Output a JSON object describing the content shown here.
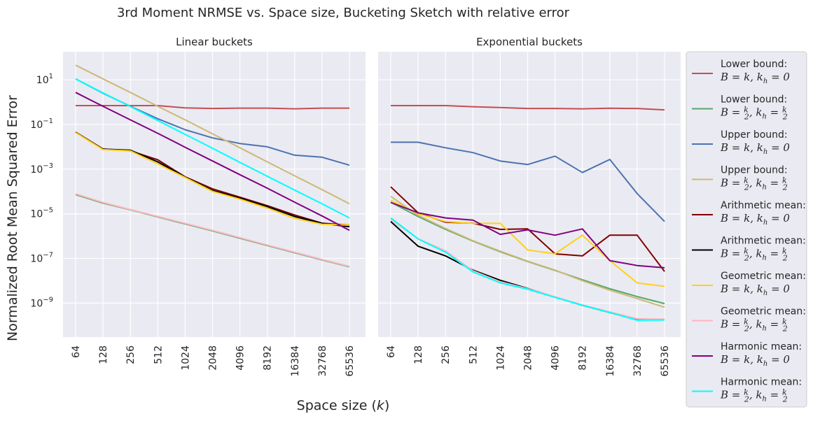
{
  "title": "3rd Moment NRMSE vs. Space size, Bucketing Sketch with relative error",
  "ylabel": "Normalized Root Mean Squared Error",
  "xlabel": "Space size (k)",
  "chart_data": [
    {
      "type": "line",
      "title": "Linear buckets",
      "y_scale": "log",
      "ylim": [
        3e-11,
        180
      ],
      "y_ticks": [
        1,
        -1,
        -3,
        -5,
        -7,
        -9
      ],
      "categories": [
        "64",
        "128",
        "256",
        "512",
        "1024",
        "2048",
        "4096",
        "8192",
        "16384",
        "32768",
        "65536"
      ],
      "grid": true,
      "series": [
        {
          "name": "Lower bound: B = k, k_h = 0",
          "color": "#c44e52",
          "values": [
            0.7,
            0.7,
            0.7,
            0.7,
            0.55,
            0.52,
            0.54,
            0.54,
            0.5,
            0.54,
            0.54
          ]
        },
        {
          "name": "Lower bound: B = k/2, k_h = k/2",
          "color": "#55a868",
          "values": [
            7.2e-05,
            3e-05,
            1.5e-05,
            7.2e-06,
            3.5e-06,
            1.7e-06,
            8e-07,
            3.8e-07,
            1.8e-07,
            8.6e-08,
            4.2e-08
          ]
        },
        {
          "name": "Upper bound: B = k, k_h = 0",
          "color": "#4c72b0",
          "values": [
            11,
            2.5,
            0.65,
            0.18,
            0.058,
            0.025,
            0.014,
            0.01,
            0.0042,
            0.0034,
            0.0015
          ]
        },
        {
          "name": "Upper bound: B = k/2, k_h = k/2",
          "color": "#ccb974",
          "values": [
            45,
            11,
            2.7,
            0.65,
            0.16,
            0.038,
            0.009,
            0.0021,
            0.0005,
            0.00012,
            2.8e-05
          ]
        },
        {
          "name": "Arithmetic mean: B = k, k_h = 0",
          "color": "#800000",
          "values": [
            0.045,
            0.008,
            0.0065,
            0.0026,
            0.00045,
            0.00013,
            5.5e-05,
            2.3e-05,
            8.8e-06,
            3.8e-06,
            3.1e-06
          ]
        },
        {
          "name": "Arithmetic mean: B = k/2, k_h = k/2",
          "color": "#000000",
          "values": [
            0.044,
            0.0078,
            0.007,
            0.0021,
            0.00044,
            0.00011,
            5e-05,
            2.1e-05,
            7.5e-06,
            3.7e-06,
            2.6e-06
          ]
        },
        {
          "name": "Geometric mean: B = k, k_h = 0",
          "color": "#ffd11a",
          "values": [
            0.043,
            0.0075,
            0.0065,
            0.0017,
            0.00042,
            0.0001,
            4.5e-05,
            1.8e-05,
            6.2e-06,
            3.4e-06,
            3.1e-06
          ]
        },
        {
          "name": "Geometric mean: B = k/2, k_h = k/2",
          "color": "#ffb6c1",
          "values": [
            7.8e-05,
            3.2e-05,
            1.55e-05,
            7.6e-06,
            3.7e-06,
            1.8e-06,
            8.5e-07,
            4e-07,
            1.9e-07,
            9e-08,
            4.4e-08
          ]
        },
        {
          "name": "Harmonic mean: B = k, k_h = 0",
          "color": "#800080",
          "values": [
            2.7,
            0.65,
            0.16,
            0.04,
            0.0095,
            0.0023,
            0.00056,
            0.00014,
            3.3e-05,
            8e-06,
            1.8e-06
          ]
        },
        {
          "name": "Harmonic mean: B = k/2, k_h = k/2",
          "color": "#00ffff",
          "values": [
            11,
            2.6,
            0.63,
            0.15,
            0.036,
            0.0086,
            0.002,
            0.00048,
            0.000115,
            2.8e-05,
            6.5e-06
          ]
        }
      ]
    },
    {
      "type": "line",
      "title": "Exponential buckets",
      "y_scale": "log",
      "ylim": [
        3e-11,
        180
      ],
      "categories": [
        "64",
        "128",
        "256",
        "512",
        "1024",
        "2048",
        "4096",
        "8192",
        "16384",
        "32768",
        "65536"
      ],
      "grid": true,
      "series": [
        {
          "name": "Lower bound: B = k, k_h = 0",
          "color": "#c44e52",
          "values": [
            0.7,
            0.7,
            0.7,
            0.62,
            0.57,
            0.52,
            0.52,
            0.5,
            0.53,
            0.52,
            0.45
          ]
        },
        {
          "name": "Lower bound: B = k/2, k_h = k/2",
          "color": "#55a868",
          "values": [
            3.3e-05,
            7.5e-06,
            2e-06,
            6e-07,
            2e-07,
            7.3e-08,
            2.9e-08,
            1.1e-08,
            4.4e-09,
            1.95e-09,
            9.5e-10
          ]
        },
        {
          "name": "Upper bound: B = k, k_h = 0",
          "color": "#4c72b0",
          "values": [
            0.016,
            0.016,
            0.009,
            0.0055,
            0.0023,
            0.0016,
            0.0038,
            0.0007,
            0.0027,
            8e-05,
            4.5e-06
          ]
        },
        {
          "name": "Upper bound: B = k/2, k_h = k/2",
          "color": "#ccb974",
          "values": [
            6e-05,
            8.5e-06,
            2.2e-06,
            6.2e-07,
            2.1e-07,
            7.5e-08,
            3e-08,
            1e-08,
            3.8e-09,
            1.6e-09,
            6.5e-10
          ]
        },
        {
          "name": "Arithmetic mean: B = k, k_h = 0",
          "color": "#800000",
          "values": [
            0.00016,
            1.1e-05,
            4.2e-06,
            3.8e-06,
            2e-06,
            2.1e-06,
            1.6e-07,
            1.3e-07,
            1.1e-06,
            1.1e-06,
            2.6e-08
          ]
        },
        {
          "name": "Arithmetic mean: B = k/2, k_h = k/2",
          "color": "#000000",
          "values": [
            4.5e-06,
            3.5e-07,
            1.3e-07,
            3e-08,
            1.05e-08,
            4.5e-09,
            1.85e-09,
            8e-10,
            3.8e-10,
            1.8e-10,
            1.8e-10
          ]
        },
        {
          "name": "Geometric mean: B = k, k_h = 0",
          "color": "#ffd11a",
          "values": [
            4e-05,
            1e-05,
            4.5e-06,
            3.7e-06,
            3.7e-06,
            2.4e-07,
            1.6e-07,
            1.1e-06,
            8e-08,
            8e-09,
            5.6e-09
          ]
        },
        {
          "name": "Geometric mean: B = k/2, k_h = k/2",
          "color": "#ffb6c1",
          "values": [
            5.5e-06,
            7.5e-07,
            2.2e-07,
            2.8e-08,
            9e-09,
            4.4e-09,
            1.9e-09,
            8.2e-10,
            4e-10,
            2e-10,
            1.9e-10
          ]
        },
        {
          "name": "Harmonic mean: B = k, k_h = 0",
          "color": "#800080",
          "values": [
            3.2e-05,
            1.1e-05,
            6.5e-06,
            5.2e-06,
            1.2e-06,
            1.9e-06,
            1.1e-06,
            2.1e-06,
            8e-08,
            4.8e-08,
            3.8e-08
          ]
        },
        {
          "name": "Harmonic mean: B = k/2, k_h = k/2",
          "color": "#00ffff",
          "values": [
            6.5e-06,
            7.5e-07,
            1.9e-07,
            2.5e-08,
            8e-09,
            4.2e-09,
            1.8e-09,
            8e-10,
            3.8e-10,
            1.7e-10,
            1.75e-10
          ]
        }
      ]
    }
  ],
  "legend": {
    "placement": "right",
    "entries": [
      {
        "label": "Lower bound:",
        "math": "B=k,kh=0",
        "color": "#c44e52"
      },
      {
        "label": "Lower bound:",
        "math": "B=k/2,kh=k/2",
        "color": "#55a868"
      },
      {
        "label": "Upper bound:",
        "math": "B=k,kh=0",
        "color": "#4c72b0"
      },
      {
        "label": "Upper bound:",
        "math": "B=k/2,kh=k/2",
        "color": "#ccb974"
      },
      {
        "label": "Arithmetic mean:",
        "math": "B=k,kh=0",
        "color": "#800000"
      },
      {
        "label": "Arithmetic mean:",
        "math": "B=k/2,kh=k/2",
        "color": "#000000"
      },
      {
        "label": "Geometric mean:",
        "math": "B=k,kh=0",
        "color": "#ffd11a"
      },
      {
        "label": "Geometric mean:",
        "math": "B=k/2,kh=k/2",
        "color": "#ffb6c1"
      },
      {
        "label": "Harmonic mean:",
        "math": "B=k,kh=0",
        "color": "#800080"
      },
      {
        "label": "Harmonic mean:",
        "math": "B=k/2,kh=k/2",
        "color": "#00ffff"
      }
    ]
  }
}
